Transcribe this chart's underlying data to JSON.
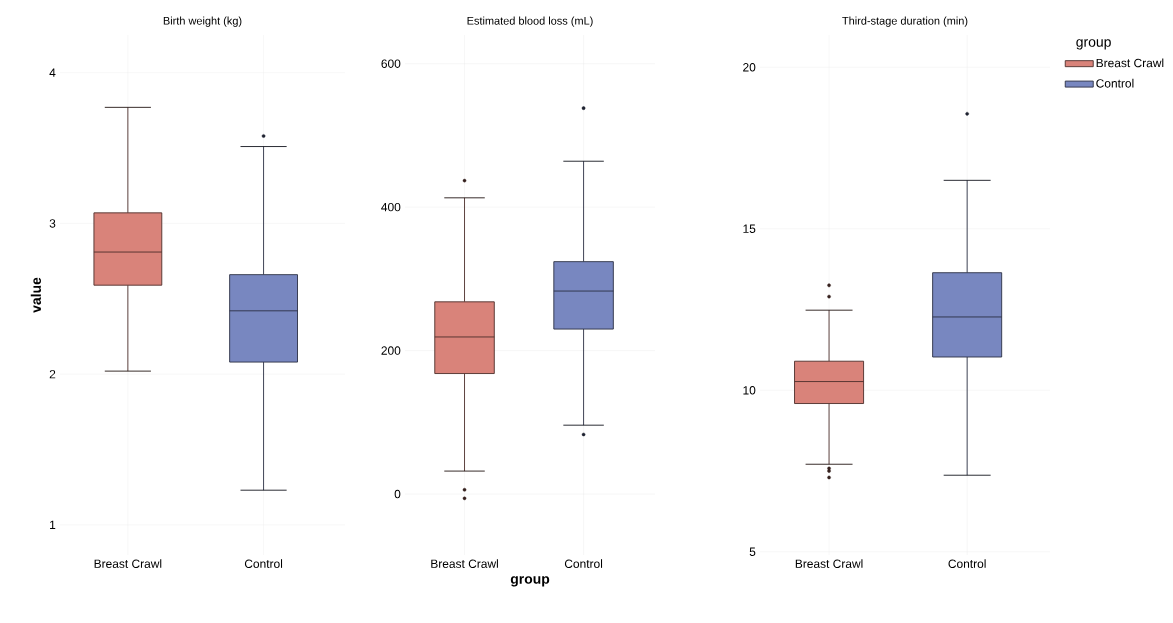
{
  "chart_data": [
    {
      "type": "box",
      "title": "Birth weight (kg)",
      "ylabel": "value",
      "categories": [
        "Breast Crawl",
        "Control"
      ],
      "ylim": [
        0.8,
        4.25
      ],
      "yticks": [
        1,
        2,
        3,
        4
      ],
      "grid": true,
      "legend": false,
      "series": [
        {
          "color": "#d9837a",
          "boxes": [
            {
              "low": 2.02,
              "q1": 2.59,
              "median": 2.81,
              "q3": 3.07,
              "high": 3.77
            },
            null
          ]
        },
        {
          "color": "#7887c0",
          "boxes": [
            null,
            {
              "low": 1.23,
              "q1": 2.08,
              "median": 2.42,
              "q3": 2.66,
              "high": 3.51,
              "outliers": [
                3.58
              ]
            }
          ]
        }
      ]
    },
    {
      "type": "box",
      "title": "Estimated blood loss (mL)",
      "xlabel": "group",
      "categories": [
        "Breast Crawl",
        "Control"
      ],
      "ylim": [
        -85,
        640
      ],
      "yticks": [
        0,
        200,
        400,
        600
      ],
      "grid": true,
      "legend": false,
      "series": [
        {
          "color": "#d9837a",
          "boxes": [
            {
              "low": 32,
              "q1": 168,
              "median": 219,
              "q3": 268,
              "high": 413,
              "outliers": [
                437,
                6,
                -6
              ]
            },
            null
          ]
        },
        {
          "color": "#7887c0",
          "boxes": [
            null,
            {
              "low": 96,
              "q1": 230,
              "median": 283,
              "q3": 324,
              "high": 464,
              "outliers": [
                538,
                83
              ]
            }
          ]
        }
      ]
    },
    {
      "type": "box",
      "title": "Third-stage duration (min)",
      "categories": [
        "Breast Crawl",
        "Control"
      ],
      "ylim": [
        4.9,
        21
      ],
      "yticks": [
        5,
        10,
        15,
        20
      ],
      "grid": true,
      "legend": "right",
      "legend_title": "group",
      "series": [
        {
          "name": "Breast Crawl",
          "color": "#d9837a",
          "boxes": [
            {
              "low": 7.71,
              "q1": 9.59,
              "median": 10.27,
              "q3": 10.9,
              "high": 12.48,
              "outliers": [
                13.25,
                12.9,
                7.58,
                7.5,
                7.3
              ]
            },
            null
          ]
        },
        {
          "name": "Control",
          "color": "#7887c0",
          "boxes": [
            null,
            {
              "low": 7.37,
              "q1": 11.03,
              "median": 12.27,
              "q3": 13.64,
              "high": 16.5,
              "outliers": [
                18.56
              ]
            }
          ]
        }
      ]
    }
  ]
}
